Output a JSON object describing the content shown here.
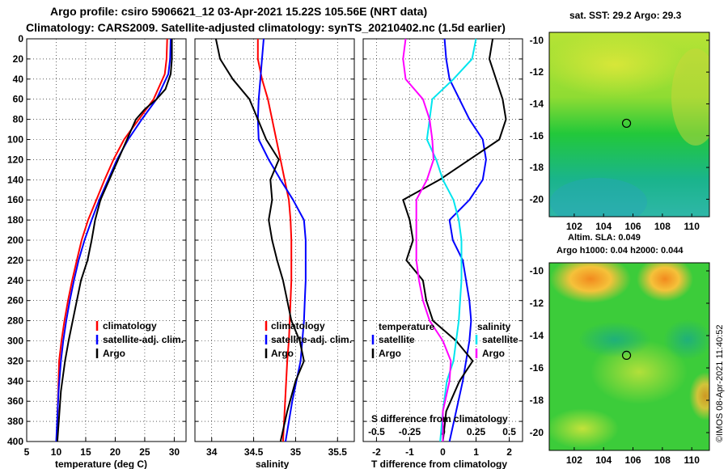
{
  "titles": {
    "line1": "Argo profile: csiro 5906621_12 03-Apr-2021 15.22S 105.56E (NRT data)",
    "line2": "Climatology: CARS2009. Satellite-adjusted climatology: synTS_20210402.nc (1.5d earlier)"
  },
  "colors": {
    "climatology": "#ff0000",
    "satellite": "#0000ff",
    "argo": "#000000",
    "temp_diff": "#ff00ff",
    "sal_diff": "#00e5ee"
  },
  "depth_axis": {
    "ticks": [
      "0",
      "20",
      "40",
      "60",
      "80",
      "100",
      "120",
      "140",
      "160",
      "180",
      "200",
      "220",
      "240",
      "260",
      "280",
      "300",
      "320",
      "340",
      "360",
      "380",
      "400"
    ],
    "range": [
      0,
      400
    ]
  },
  "chart_data": [
    {
      "type": "line",
      "name": "temperature-panel",
      "xlabel": "temperature (deg C)",
      "xlim": [
        5,
        32
      ],
      "xticks": [
        "5",
        "10",
        "15",
        "20",
        "25",
        "30"
      ],
      "ylim": [
        0,
        400
      ],
      "legend": [
        "climatology",
        "satellite-adj. clim.",
        "Argo"
      ],
      "series": [
        {
          "name": "climatology",
          "color": "#ff0000",
          "x": [
            28.8,
            28.7,
            28.4,
            26.5,
            24,
            21.5,
            19.7,
            18.2,
            16.8,
            15.4,
            14.3,
            13.5,
            12.7,
            12.0,
            11.4,
            10.9,
            10.5,
            10.1
          ],
          "y": [
            0,
            20,
            35,
            60,
            80,
            100,
            120,
            140,
            160,
            180,
            200,
            220,
            240,
            260,
            280,
            300,
            320,
            400
          ]
        },
        {
          "name": "satellite-adj. clim.",
          "color": "#0000ff",
          "x": [
            29.4,
            29.3,
            29.0,
            27.0,
            24.5,
            22.2,
            20.3,
            18.8,
            17.3,
            16.0,
            14.8,
            13.8,
            13.0,
            12.3,
            11.7,
            11.2,
            10.8,
            10.4,
            10.0
          ],
          "y": [
            0,
            20,
            35,
            60,
            80,
            100,
            120,
            140,
            160,
            180,
            200,
            220,
            240,
            260,
            280,
            300,
            320,
            350,
            400
          ]
        },
        {
          "name": "Argo",
          "color": "#000000",
          "x": [
            29.6,
            29.6,
            29.4,
            28.5,
            27,
            25,
            23.5,
            22,
            20.5,
            19,
            17.5,
            16.6,
            16.0,
            15.3,
            14.2,
            13.5,
            12.8,
            12.1,
            11.5,
            10.8,
            10.2
          ],
          "y": [
            0,
            20,
            35,
            50,
            60,
            70,
            80,
            100,
            120,
            140,
            160,
            180,
            200,
            220,
            240,
            260,
            280,
            300,
            320,
            350,
            400
          ]
        }
      ]
    },
    {
      "type": "line",
      "name": "salinity-panel",
      "xlabel": "salinity",
      "xlim": [
        33.8,
        35.7
      ],
      "xticks": [
        "34",
        "34.5",
        "35",
        "35.5"
      ],
      "ylim": [
        0,
        400
      ],
      "legend": [
        "climatology",
        "satellite-adj. clim.",
        "Argo"
      ],
      "series": [
        {
          "name": "climatology",
          "color": "#ff0000",
          "x": [
            34.55,
            34.55,
            34.6,
            34.67,
            34.72,
            34.77,
            34.82,
            34.87,
            34.92,
            34.94,
            34.95,
            34.95,
            34.95,
            34.94,
            34.93,
            34.92,
            34.9,
            34.85
          ],
          "y": [
            0,
            20,
            40,
            60,
            80,
            100,
            120,
            140,
            160,
            180,
            200,
            220,
            240,
            260,
            280,
            300,
            320,
            400
          ]
        },
        {
          "name": "satellite-adj. clim.",
          "color": "#0000ff",
          "x": [
            34.62,
            34.6,
            34.58,
            34.56,
            34.55,
            34.56,
            34.68,
            34.82,
            34.97,
            35.1,
            35.12,
            35.12,
            35.12,
            35.11,
            35.1,
            35.08,
            35.06,
            34.96,
            34.88
          ],
          "y": [
            0,
            20,
            40,
            60,
            80,
            100,
            120,
            140,
            160,
            180,
            200,
            220,
            240,
            260,
            280,
            300,
            320,
            360,
            400
          ]
        },
        {
          "name": "Argo",
          "color": "#000000",
          "x": [
            34.05,
            34.1,
            34.25,
            34.45,
            34.55,
            34.65,
            34.8,
            34.7,
            34.72,
            34.68,
            34.72,
            34.78,
            34.85,
            34.9,
            34.95,
            35.05,
            35.1,
            35.0,
            34.9,
            34.82
          ],
          "y": [
            0,
            20,
            40,
            60,
            80,
            100,
            120,
            140,
            160,
            180,
            200,
            220,
            240,
            260,
            280,
            300,
            320,
            340,
            370,
            400
          ]
        }
      ]
    },
    {
      "type": "line",
      "name": "difference-panel",
      "xlabel": "T difference from climatology",
      "xlim": [
        -2.4,
        2.4
      ],
      "xticks": [
        "-2",
        "-1",
        "0",
        "1",
        "2"
      ],
      "top_label": "S difference from climatology",
      "top_ticks": [
        "-0.5",
        "-0.25",
        "0",
        "0.25",
        "0.5"
      ],
      "ylim": [
        0,
        400
      ],
      "legend_temperature": {
        "heading": "temperature",
        "items": [
          "satellite",
          "Argo"
        ]
      },
      "legend_salinity": {
        "heading": "salinity",
        "items": [
          "satellite",
          "Argo"
        ]
      },
      "series": [
        {
          "name": "temperature satellite",
          "color": "#0000ff",
          "x": [
            0.05,
            0.1,
            0.2,
            0.5,
            0.8,
            1.2,
            1.3,
            1.2,
            0.8,
            0.2,
            0.3,
            0.6,
            0.7,
            0.8,
            0.85,
            0.8,
            0.7,
            0.6,
            0.4,
            0.2
          ],
          "y": [
            0,
            20,
            40,
            60,
            80,
            100,
            120,
            140,
            160,
            180,
            200,
            220,
            240,
            260,
            280,
            300,
            320,
            340,
            370,
            400
          ]
        },
        {
          "name": "temperature Argo",
          "color": "#000000",
          "x": [
            1.5,
            1.4,
            1.6,
            1.8,
            1.9,
            1.7,
            0.8,
            -0.1,
            -1.2,
            -1.0,
            -0.9,
            -1.1,
            -0.6,
            -0.5,
            -0.3,
            0.4,
            0.9,
            0.5,
            0.1,
            0.0
          ],
          "y": [
            0,
            20,
            40,
            60,
            80,
            100,
            120,
            140,
            160,
            180,
            200,
            220,
            240,
            260,
            280,
            300,
            320,
            340,
            370,
            400
          ]
        },
        {
          "name": "salinity satellite",
          "color": "#00e5ee",
          "x": [
            0.25,
            0.22,
            0.08,
            -0.08,
            -0.1,
            -0.12,
            -0.05,
            0.0,
            0.08,
            0.12,
            0.14,
            0.14,
            0.14,
            0.13,
            0.12,
            0.1,
            0.08,
            0.03,
            0.0,
            -0.02
          ],
          "y": [
            0,
            20,
            40,
            60,
            80,
            100,
            120,
            140,
            160,
            180,
            200,
            220,
            240,
            260,
            280,
            300,
            320,
            340,
            370,
            400
          ]
        },
        {
          "name": "salinity Argo",
          "color": "#ff00ff",
          "x": [
            -0.28,
            -0.3,
            -0.28,
            -0.15,
            -0.1,
            -0.08,
            -0.07,
            -0.12,
            -0.2,
            -0.2,
            -0.2,
            -0.2,
            -0.18,
            -0.15,
            -0.1,
            0.0,
            0.06,
            0.05,
            0.0,
            0.0
          ],
          "y": [
            0,
            20,
            40,
            60,
            80,
            100,
            120,
            140,
            160,
            180,
            200,
            220,
            240,
            260,
            280,
            300,
            320,
            340,
            370,
            400
          ]
        }
      ]
    },
    {
      "type": "heatmap",
      "name": "sst-map",
      "title": "sat. SST: 29.2 Argo: 29.3",
      "xticks": [
        "102",
        "104",
        "106",
        "108",
        "110"
      ],
      "yticks": [
        "-10",
        "-12",
        "-14",
        "-16",
        "-18",
        "-20"
      ],
      "xlim": [
        100.3,
        111.2
      ],
      "ylim": [
        -21.1,
        -9.5
      ],
      "argo_position": {
        "lon": 105.56,
        "lat": -15.22
      }
    },
    {
      "type": "heatmap",
      "name": "sla-map",
      "title_line1": "Altim. SLA: 0.049",
      "title_line2": "Argo h1000: 0.04 h2000: 0.044",
      "xticks": [
        "102",
        "104",
        "106",
        "108",
        "110"
      ],
      "yticks": [
        "-10",
        "-12",
        "-14",
        "-16",
        "-18",
        "-20"
      ],
      "xlim": [
        100.3,
        111.2
      ],
      "ylim": [
        -21.1,
        -9.5
      ],
      "argo_position": {
        "lon": 105.56,
        "lat": -15.22
      }
    }
  ],
  "watermark": "©IMOS 08-Apr-2021 11:40:52"
}
